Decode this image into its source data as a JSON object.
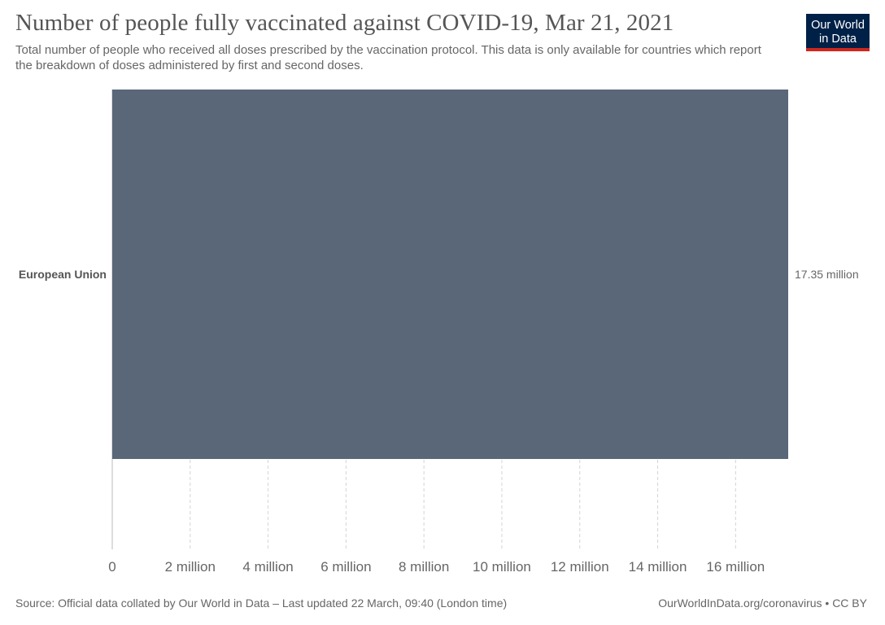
{
  "header": {
    "title": "Number of people fully vaccinated against COVID-19, Mar 21, 2021",
    "subtitle": "Total number of people who received all doses prescribed by the vaccination protocol. This data is only available for countries which report the breakdown of doses administered by first and second doses."
  },
  "logo": {
    "line1": "Our World",
    "line2": "in Data",
    "bg_color": "#002147",
    "accent_color": "#ce261e"
  },
  "footer": {
    "source": "Source: Official data collated by Our World in Data – Last updated 22 March, 09:40 (London time)",
    "credit": "OurWorldInData.org/coronavirus • CC BY"
  },
  "chart_data": {
    "type": "bar",
    "orientation": "horizontal",
    "categories": [
      "European Union"
    ],
    "values": [
      17350000
    ],
    "value_labels": [
      "17.35 million"
    ],
    "xlim": [
      0,
      17350000
    ],
    "x_ticks": [
      0,
      2000000,
      4000000,
      6000000,
      8000000,
      10000000,
      12000000,
      14000000,
      16000000
    ],
    "x_tick_labels": [
      "0",
      "2 million",
      "4 million",
      "6 million",
      "8 million",
      "10 million",
      "12 million",
      "14 million",
      "16 million"
    ],
    "grid": true,
    "bar_color": "#5a6779"
  }
}
